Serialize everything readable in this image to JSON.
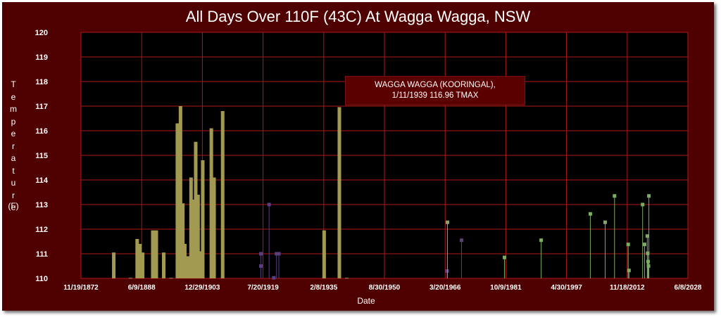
{
  "chart_data": {
    "type": "bar",
    "title": "All Days Over 110F (43C) At Wagga Wagga, NSW",
    "xlabel": "Date",
    "ylabel": "Temperature",
    "yunit": "(F)",
    "ylim": [
      110,
      120
    ],
    "yticks": [
      110,
      111,
      112,
      113,
      114,
      115,
      116,
      117,
      118,
      119,
      120
    ],
    "xticks": [
      "11/19/1872",
      "6/9/1888",
      "12/29/1903",
      "7/20/1919",
      "2/8/1935",
      "8/30/1950",
      "3/20/1966",
      "10/9/1981",
      "4/30/1997",
      "11/18/2012",
      "6/8/2028"
    ],
    "grid": true,
    "tooltip": {
      "line1": "WAGGA WAGGA (KOORINGAL),",
      "line2": "1/11/1939    116.96  TMAX"
    },
    "series": [
      {
        "color": "#a39a52",
        "bars": [
          [
            1881.3,
            111.05
          ],
          [
            1885.6,
            110.02
          ],
          [
            1887.3,
            111.6
          ],
          [
            1888.0,
            111.4
          ],
          [
            1888.7,
            111.05
          ],
          [
            1891.3,
            111.95
          ],
          [
            1892.2,
            111.95
          ],
          [
            1894.1,
            111.05
          ],
          [
            1896.0,
            110.02
          ],
          [
            1897.6,
            116.3
          ],
          [
            1898.0,
            115.0
          ],
          [
            1898.4,
            117.0
          ],
          [
            1899.0,
            113.05
          ],
          [
            1899.5,
            111.4
          ],
          [
            1900.3,
            110.9
          ],
          [
            1901.1,
            114.1
          ],
          [
            1901.6,
            113.2
          ],
          [
            1902.3,
            115.55
          ],
          [
            1902.9,
            113.4
          ],
          [
            1903.4,
            111.1
          ],
          [
            1904.1,
            114.8
          ],
          [
            1906.3,
            116.1
          ],
          [
            1907.0,
            114.1
          ],
          [
            1909.2,
            116.8
          ],
          [
            1935.2,
            111.95
          ],
          [
            1939.1,
            116.96
          ],
          [
            1941.0,
            110.02
          ]
        ]
      },
      {
        "color": "#5a3f7e",
        "stems": [
          [
            1919.0,
            111.0
          ],
          [
            1919.0,
            110.5
          ],
          [
            1921.1,
            113.0
          ],
          [
            1922.3,
            110.02
          ],
          [
            1923.0,
            111.0
          ],
          [
            1923.6,
            111.0
          ],
          [
            1966.7,
            110.3
          ],
          [
            1970.4,
            111.55
          ]
        ]
      },
      {
        "color": "#7dab62",
        "stems": [
          [
            1966.8,
            112.28
          ],
          [
            1981.4,
            110.85
          ],
          [
            1990.8,
            111.55
          ],
          [
            2003.4,
            112.62
          ],
          [
            2007.2,
            112.28
          ],
          [
            2009.6,
            113.35
          ],
          [
            2013.1,
            111.38
          ],
          [
            2013.3,
            110.32
          ],
          [
            2016.8,
            113.0
          ],
          [
            2017.3,
            111.38
          ],
          [
            2018.0,
            111.72
          ],
          [
            2018.1,
            111.02
          ],
          [
            2018.2,
            110.68
          ],
          [
            2018.3,
            110.5
          ],
          [
            2018.4,
            113.35
          ]
        ]
      }
    ]
  }
}
